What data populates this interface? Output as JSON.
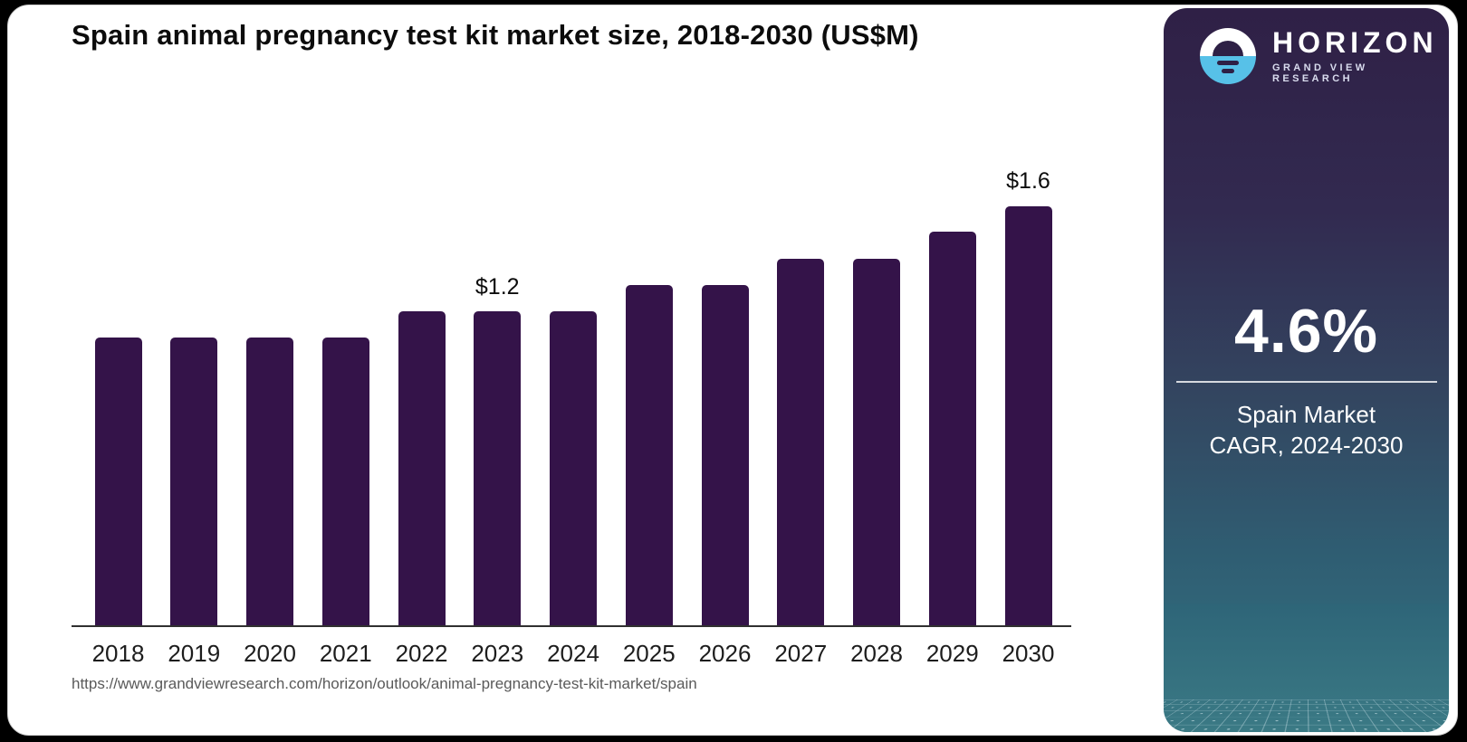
{
  "page": {
    "background": "#000000"
  },
  "chart": {
    "title": "Spain animal pregnancy test kit market size, 2018-2030 (US$M)",
    "source_url": "https://www.grandviewresearch.com/horizon/outlook/animal-pregnancy-test-kit-market/spain"
  },
  "chart_data": {
    "type": "bar",
    "title": "Spain animal pregnancy test kit market size, 2018-2030 (US$M)",
    "unit": "US$M",
    "categories": [
      "2018",
      "2019",
      "2020",
      "2021",
      "2022",
      "2023",
      "2024",
      "2025",
      "2026",
      "2027",
      "2028",
      "2029",
      "2030"
    ],
    "values": [
      1.1,
      1.1,
      1.1,
      1.1,
      1.2,
      1.2,
      1.2,
      1.3,
      1.3,
      1.4,
      1.4,
      1.5,
      1.6
    ],
    "point_labels": {
      "2023": "$1.2",
      "2030": "$1.6"
    },
    "bar_color": "#341349",
    "ylim": [
      0,
      1.6
    ],
    "xlabel": "",
    "ylabel": "",
    "grid": false,
    "legend": false
  },
  "sidebar": {
    "brand": {
      "name": "HORIZON",
      "tagline": "GRAND VIEW RESEARCH",
      "logo_blue": "#57c1e8"
    },
    "stat": {
      "value": "4.6%",
      "label_line1": "Spain Market",
      "label_line2": "CAGR, 2024-2030"
    }
  }
}
